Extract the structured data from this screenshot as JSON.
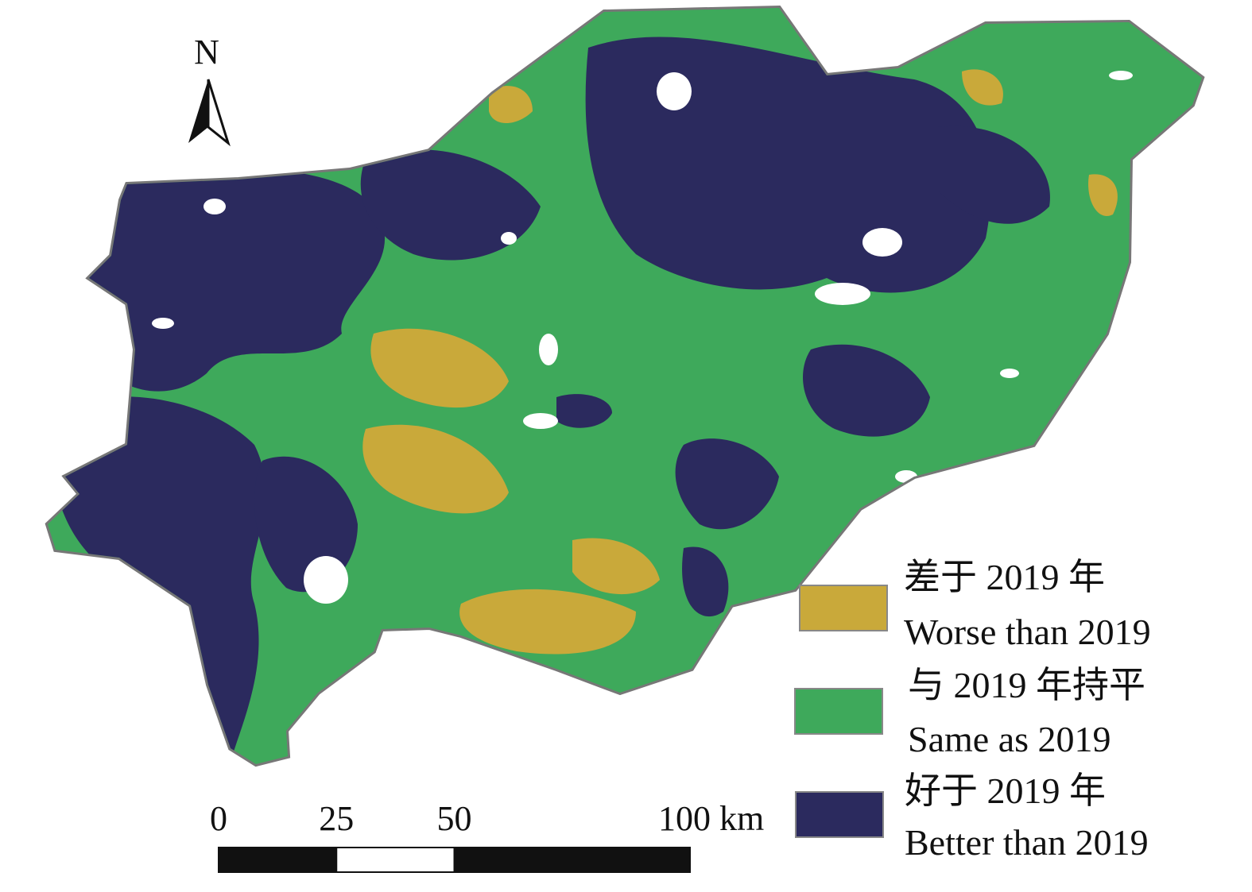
{
  "north": "N",
  "legend": [
    {
      "zh": "差于 2019 年",
      "en": "Worse than 2019",
      "color": "#c9a93a"
    },
    {
      "zh": "与 2019 年持平",
      "en": "Same as 2019",
      "color": "#3ea95b"
    },
    {
      "zh": "好于 2019 年",
      "en": "Better than 2019",
      "color": "#2b2a5e"
    }
  ],
  "scale_bar": {
    "ticks": [
      0,
      25,
      50,
      {
        "value": 100,
        "label": "100 km"
      }
    ]
  }
}
